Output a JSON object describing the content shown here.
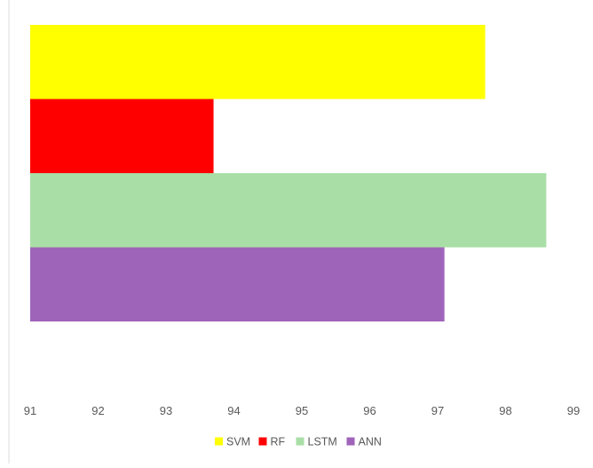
{
  "chart_data": {
    "type": "bar",
    "orientation": "horizontal",
    "title": "",
    "xlabel": "",
    "ylabel": "",
    "xlim": [
      91,
      99
    ],
    "x_ticks": [
      "91",
      "92",
      "93",
      "94",
      "95",
      "96",
      "97",
      "98",
      "99"
    ],
    "grid": false,
    "legend_position": "bottom",
    "series": [
      {
        "name": "SVM",
        "value": 97.7,
        "color": "#FFFF00"
      },
      {
        "name": "RF",
        "value": 93.7,
        "color": "#FF0000"
      },
      {
        "name": "LSTM",
        "value": 98.6,
        "color": "#A9DFA6"
      },
      {
        "name": "ANN",
        "value": 97.1,
        "color": "#9E64BA"
      }
    ]
  }
}
